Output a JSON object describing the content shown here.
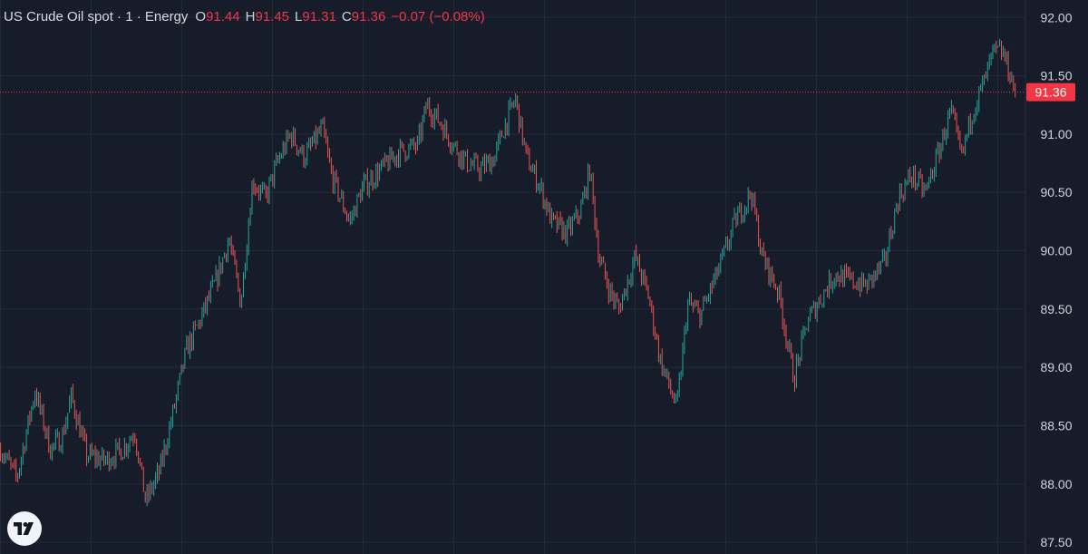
{
  "legend": {
    "title": "US Crude Oil spot · 1 · Energy",
    "open_key": "O",
    "open": "91.44",
    "high_key": "H",
    "high": "91.45",
    "low_key": "L",
    "low": "91.31",
    "close_key": "C",
    "close": "91.36",
    "change": "−0.07 (−0.08%)"
  },
  "colors": {
    "background": "#161c2a",
    "grid": "#232a3a",
    "up": "#26a69a",
    "down": "#ef5350",
    "text": "#d1d4dc",
    "last_price": "#f23645"
  },
  "logo_icon": "tradingview-logo-icon",
  "chart_data": {
    "type": "candlestick",
    "title": "US Crude Oil spot · 1 · Energy",
    "ylim": [
      87.4,
      92.15
    ],
    "y_ticks": [
      "92.00",
      "91.50",
      "91.00",
      "90.50",
      "90.00",
      "89.50",
      "89.00",
      "88.50",
      "88.00",
      "87.50"
    ],
    "y_tick_values": [
      92.0,
      91.5,
      91.0,
      90.5,
      90.0,
      89.5,
      89.0,
      88.5,
      88.0,
      87.5
    ],
    "last_price": 91.36,
    "last_price_label": "91.36",
    "grid": true,
    "close_path": [
      [
        0,
        88.3
      ],
      [
        18,
        88.05
      ],
      [
        38,
        88.8
      ],
      [
        55,
        88.3
      ],
      [
        68,
        88.4
      ],
      [
        78,
        88.75
      ],
      [
        95,
        88.25
      ],
      [
        115,
        88.2
      ],
      [
        135,
        88.3
      ],
      [
        148,
        88.45
      ],
      [
        160,
        87.85
      ],
      [
        175,
        88.1
      ],
      [
        190,
        88.6
      ],
      [
        205,
        89.15
      ],
      [
        220,
        89.4
      ],
      [
        238,
        89.75
      ],
      [
        252,
        90.1
      ],
      [
        265,
        89.55
      ],
      [
        278,
        90.6
      ],
      [
        292,
        90.45
      ],
      [
        305,
        90.75
      ],
      [
        320,
        91.0
      ],
      [
        335,
        90.8
      ],
      [
        355,
        91.05
      ],
      [
        365,
        90.65
      ],
      [
        385,
        90.25
      ],
      [
        400,
        90.55
      ],
      [
        420,
        90.7
      ],
      [
        440,
        90.85
      ],
      [
        460,
        90.9
      ],
      [
        470,
        91.25
      ],
      [
        485,
        91.1
      ],
      [
        500,
        90.9
      ],
      [
        515,
        90.75
      ],
      [
        530,
        90.7
      ],
      [
        545,
        90.8
      ],
      [
        555,
        91.05
      ],
      [
        568,
        91.3
      ],
      [
        580,
        90.8
      ],
      [
        595,
        90.55
      ],
      [
        608,
        90.25
      ],
      [
        625,
        90.15
      ],
      [
        640,
        90.35
      ],
      [
        650,
        90.7
      ],
      [
        660,
        89.95
      ],
      [
        672,
        89.65
      ],
      [
        682,
        89.5
      ],
      [
        700,
        89.95
      ],
      [
        715,
        89.6
      ],
      [
        728,
        89.05
      ],
      [
        746,
        88.65
      ],
      [
        758,
        89.55
      ],
      [
        772,
        89.45
      ],
      [
        785,
        89.7
      ],
      [
        795,
        89.9
      ],
      [
        810,
        90.25
      ],
      [
        828,
        90.5
      ],
      [
        840,
        89.95
      ],
      [
        858,
        89.65
      ],
      [
        875,
        88.9
      ],
      [
        890,
        89.4
      ],
      [
        905,
        89.6
      ],
      [
        920,
        89.8
      ],
      [
        935,
        89.75
      ],
      [
        955,
        89.7
      ],
      [
        975,
        89.9
      ],
      [
        990,
        90.45
      ],
      [
        1005,
        90.65
      ],
      [
        1020,
        90.5
      ],
      [
        1035,
        90.85
      ],
      [
        1048,
        91.2
      ],
      [
        1060,
        90.8
      ],
      [
        1072,
        91.2
      ],
      [
        1085,
        91.45
      ],
      [
        1095,
        91.7
      ],
      [
        1105,
        91.7
      ],
      [
        1112,
        91.55
      ],
      [
        1120,
        91.36
      ]
    ]
  }
}
